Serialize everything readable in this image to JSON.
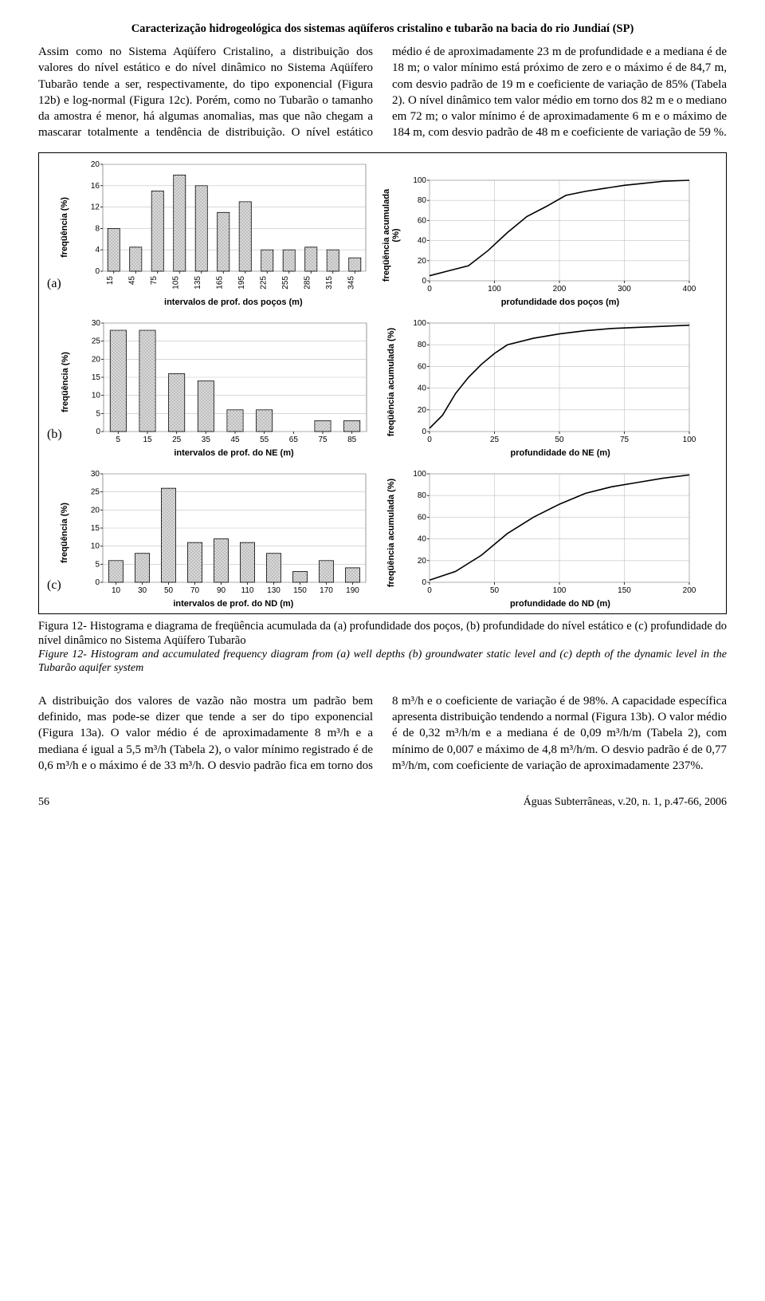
{
  "header": "Caracterização hidrogeológica dos sistemas aqüíferos cristalino e tubarão na bacia do rio Jundiaí (SP)",
  "para_left": "Assim como no Sistema Aqüífero Cristalino, a distribuição dos valores do nível estático e do nível dinâmico no Sistema Aqüífero Tubarão tende a ser, respectivamente, do tipo exponencial (Figura 12b) e log-normal (Figura 12c). Porém, como no Tubarão o tamanho da amostra é menor, há algumas anomalias, mas que não chegam a mascarar totalmente a tendência de distribuição. O nível estático médio é de aproximadamente 23",
  "para_right": "m de profundidade e a mediana é de 18 m; o valor mínimo está próximo de zero e o máximo é de 84,7 m, com desvio padrão de 19 m e coeficiente de variação de 85% (Tabela 2). O nível dinâmico tem valor médio em torno dos 82 m e o mediano em 72 m; o valor mínimo é de aproximadamente 6 m e o máximo de 184 m, com desvio padrão de 48 m e coeficiente de variação de 59 %.",
  "row_labels": {
    "a": "(a)",
    "b": "(b)",
    "c": "(c)"
  },
  "charts": {
    "a_hist": {
      "type": "bar",
      "categories": [
        "15",
        "45",
        "75",
        "105",
        "135",
        "165",
        "195",
        "225",
        "255",
        "285",
        "315",
        "345"
      ],
      "values": [
        8,
        4.5,
        15,
        18,
        16,
        11,
        13,
        4,
        4,
        4.5,
        4,
        2.5
      ],
      "ylim": [
        0,
        20
      ],
      "yticks": [
        0,
        4,
        8,
        12,
        16,
        20
      ],
      "bar_color": "#d8d8d8",
      "bar_border": "#000000",
      "grid_color": "#c0c0c0",
      "bg": "#ffffff",
      "ylabel": "freqüência (%)",
      "xlabel": "intervalos de prof. dos poços (m)",
      "tick_rotate": true
    },
    "a_cum": {
      "type": "line",
      "x": [
        0,
        30,
        60,
        90,
        120,
        150,
        180,
        210,
        240,
        270,
        300,
        330,
        360,
        400
      ],
      "y": [
        5,
        10,
        15,
        30,
        48,
        64,
        74,
        85,
        89,
        92,
        95,
        97,
        99,
        100
      ],
      "xlim": [
        0,
        400
      ],
      "xticks": [
        0,
        100,
        200,
        300,
        400
      ],
      "ylim": [
        0,
        100
      ],
      "yticks": [
        0,
        20,
        40,
        60,
        80,
        100
      ],
      "line_color": "#000000",
      "grid_color": "#c0c0c0",
      "bg": "#ffffff",
      "ylabel_l1": "freqüência acumulada",
      "ylabel_l2": "(%)",
      "xlabel": "profundidade dos poços (m)"
    },
    "b_hist": {
      "type": "bar",
      "categories": [
        "5",
        "15",
        "25",
        "35",
        "45",
        "55",
        "65",
        "75",
        "85"
      ],
      "values": [
        28,
        28,
        16,
        14,
        6,
        6,
        0,
        3,
        3
      ],
      "ylim": [
        0,
        30
      ],
      "yticks": [
        0,
        5,
        10,
        15,
        20,
        25,
        30
      ],
      "bar_color": "#d8d8d8",
      "bar_border": "#000000",
      "grid_color": "#c0c0c0",
      "bg": "#ffffff",
      "ylabel": "freqüência (%)",
      "xlabel": "intervalos de prof. do NE (m)",
      "tick_rotate": false
    },
    "b_cum": {
      "type": "line",
      "x": [
        0,
        5,
        10,
        15,
        20,
        25,
        30,
        40,
        50,
        60,
        70,
        80,
        90,
        100
      ],
      "y": [
        3,
        15,
        35,
        50,
        62,
        72,
        80,
        86,
        90,
        93,
        95,
        96,
        97,
        98
      ],
      "xlim": [
        0,
        100
      ],
      "xticks": [
        0,
        25,
        50,
        75,
        100
      ],
      "ylim": [
        0,
        100
      ],
      "yticks": [
        0,
        20,
        40,
        60,
        80,
        100
      ],
      "line_color": "#000000",
      "grid_color": "#c0c0c0",
      "bg": "#ffffff",
      "ylabel": "freqüência acumulada (%)",
      "xlabel": "profundidade do NE (m)"
    },
    "c_hist": {
      "type": "bar",
      "categories": [
        "10",
        "30",
        "50",
        "70",
        "90",
        "110",
        "130",
        "150",
        "170",
        "190"
      ],
      "values": [
        6,
        8,
        26,
        11,
        12,
        11,
        8,
        3,
        6,
        4
      ],
      "ylim": [
        0,
        30
      ],
      "yticks": [
        0,
        5,
        10,
        15,
        20,
        25,
        30
      ],
      "bar_color": "#d8d8d8",
      "bar_border": "#000000",
      "grid_color": "#c0c0c0",
      "bg": "#ffffff",
      "ylabel": "freqüência (%)",
      "xlabel": "intervalos de prof. do ND (m)",
      "tick_rotate": false
    },
    "c_cum": {
      "type": "line",
      "x": [
        0,
        20,
        40,
        60,
        80,
        100,
        120,
        140,
        160,
        180,
        200
      ],
      "y": [
        2,
        10,
        25,
        45,
        60,
        72,
        82,
        88,
        92,
        96,
        99
      ],
      "xlim": [
        0,
        200
      ],
      "xticks": [
        0,
        50,
        100,
        150,
        200
      ],
      "ylim": [
        0,
        100
      ],
      "yticks": [
        0,
        20,
        40,
        60,
        80,
        100
      ],
      "line_color": "#000000",
      "grid_color": "#c0c0c0",
      "bg": "#ffffff",
      "ylabel": "freqüência acumulada (%)",
      "xlabel": "profundidade do ND (m)"
    }
  },
  "caption": "Figura 12- Histograma e diagrama de freqüência acumulada da (a) profundidade dos poços, (b) profundidade do nível estático e (c) profundidade do nível dinâmico no Sistema Aqüífero Tubarão",
  "caption_it": "Figure 12- Histogram and accumulated frequency diagram from (a) well depths (b) groundwater static level and (c) depth of the dynamic level in the Tubarão aquifer system",
  "para2_left": "A distribuição dos valores de vazão não mostra um padrão bem definido, mas pode-se dizer que tende a ser do tipo exponencial (Figura 13a). O valor médio é de aproximadamente 8 m³/h e a mediana é igual a 5,5 m³/h (Tabela 2), o valor mínimo registrado é de 0,6 m³/h e o máximo é de 33 m³/h. O desvio padrão fica em torno dos 8 m³/h e o coeficiente de variação é de 98%.",
  "para2_right": "A capacidade específica apresenta distribuição tendendo a normal (Figura 13b). O valor médio é de 0,32 m³/h/m e a mediana é de 0,09 m³/h/m (Tabela 2), com mínimo de 0,007 e máximo de 4,8 m³/h/m. O desvio padrão é de 0,77 m³/h/m, com coeficiente de variação de aproximadamente 237%.",
  "footer": {
    "page": "56",
    "journal": "Águas Subterrâneas, v.20, n. 1, p.47-66, 2006"
  }
}
